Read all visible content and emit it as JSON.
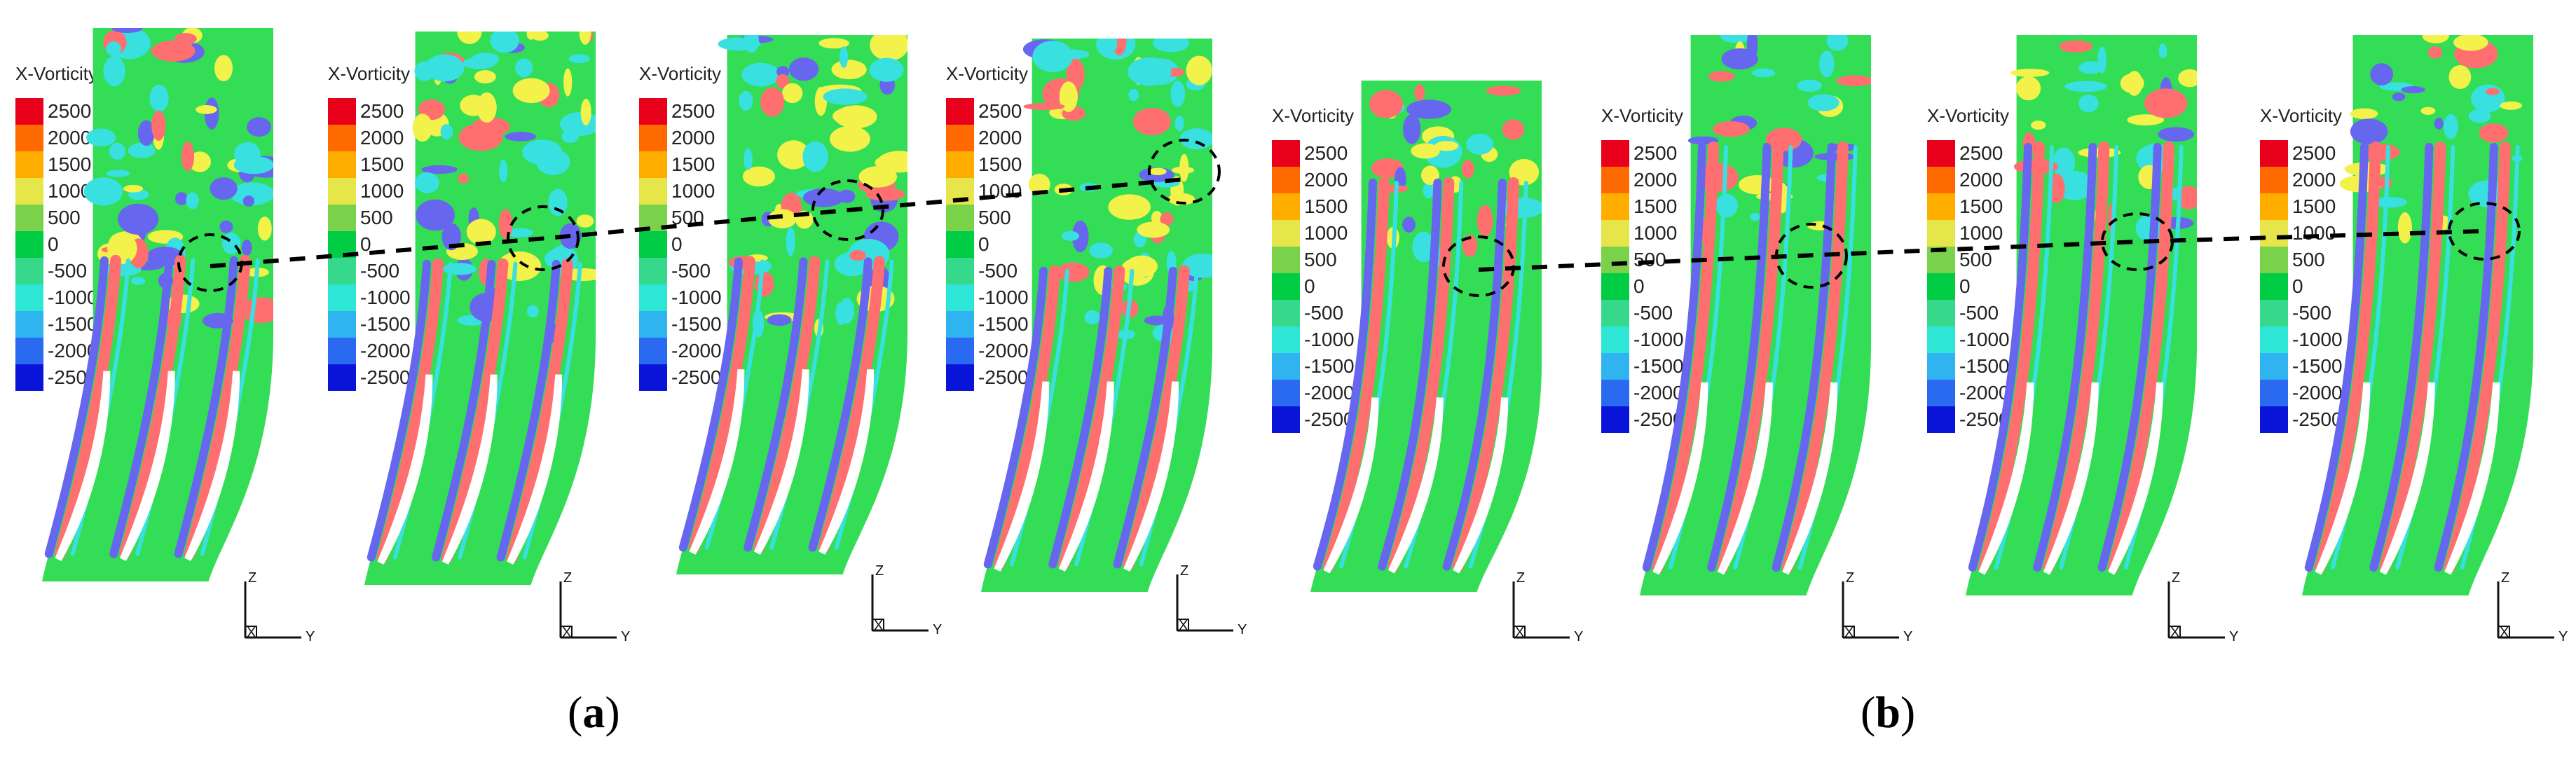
{
  "legend": {
    "title": "X-Vorticity",
    "levels": [
      "2500",
      "2000",
      "1500",
      "1000",
      "500",
      "0",
      "-500",
      "-1000",
      "-1500",
      "-2000",
      "-2500"
    ],
    "colors": [
      "#e8001a",
      "#ff6a00",
      "#ffae00",
      "#e6e64a",
      "#7ad24a",
      "#00cc44",
      "#36d98c",
      "#2ee6d6",
      "#2fb4f0",
      "#2a6af0",
      "#0a14d8"
    ]
  },
  "field_colors": {
    "background": "#33dd55",
    "positive": "#ff6f6f",
    "negative": "#6666ee",
    "cyan": "#38e0e0",
    "yellow": "#f2f24a",
    "blade": "#ffffff"
  },
  "axes": {
    "z": "Z",
    "x": "X",
    "y": "Y"
  },
  "captions": {
    "a": "a",
    "b": "b"
  }
}
